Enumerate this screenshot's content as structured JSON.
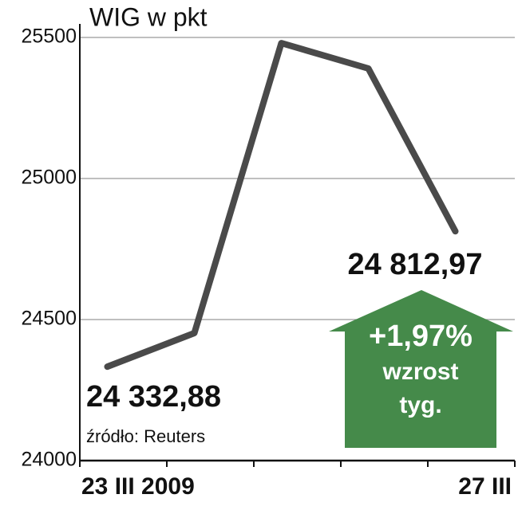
{
  "chart_data": {
    "type": "line",
    "title": "WIG w pkt",
    "categories": [
      "23 III 2009",
      null,
      null,
      null,
      "27 III"
    ],
    "series": [
      {
        "color": "#4a4a4a",
        "values": [
          24332.88,
          24452,
          25480,
          25390,
          24812.97
        ],
        "value_labels": [
          "24 332,88",
          null,
          null,
          null,
          "24 812,97"
        ]
      }
    ],
    "ylim": [
      24000,
      25500
    ],
    "yticks": [
      24000,
      24500,
      25000,
      25500
    ],
    "grid": true,
    "annotations": [
      "+1,97%",
      "wzrost",
      "tyg."
    ],
    "annotation_color": "#458a4a",
    "source": "źródło: Reuters"
  }
}
